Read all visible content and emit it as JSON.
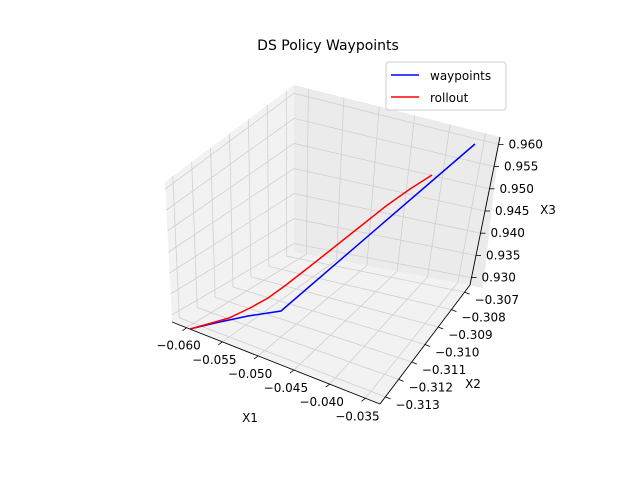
{
  "chart_data": {
    "type": "line",
    "title": "DS Policy Waypoints",
    "xlabel": "X1",
    "ylabel": "X2",
    "zlabel": "X3",
    "xlim": [
      -0.062,
      -0.033
    ],
    "ylim": [
      -0.3134,
      -0.3063
    ],
    "zlim": [
      0.9295,
      0.9625
    ],
    "x_ticks": [
      "−0.060",
      "−0.055",
      "−0.050",
      "−0.045",
      "−0.040",
      "−0.035"
    ],
    "y_ticks": [
      "−0.313",
      "−0.312",
      "−0.311",
      "−0.310",
      "−0.309",
      "−0.308",
      "−0.307"
    ],
    "z_ticks": [
      "0.930",
      "0.935",
      "0.940",
      "0.945",
      "0.950",
      "0.955",
      "0.960"
    ],
    "grid": true,
    "legend_position": "top-right",
    "series": [
      {
        "name": "waypoints",
        "color": "#0000ff"
      },
      {
        "name": "rollout",
        "color": "#ff0000"
      }
    ]
  }
}
